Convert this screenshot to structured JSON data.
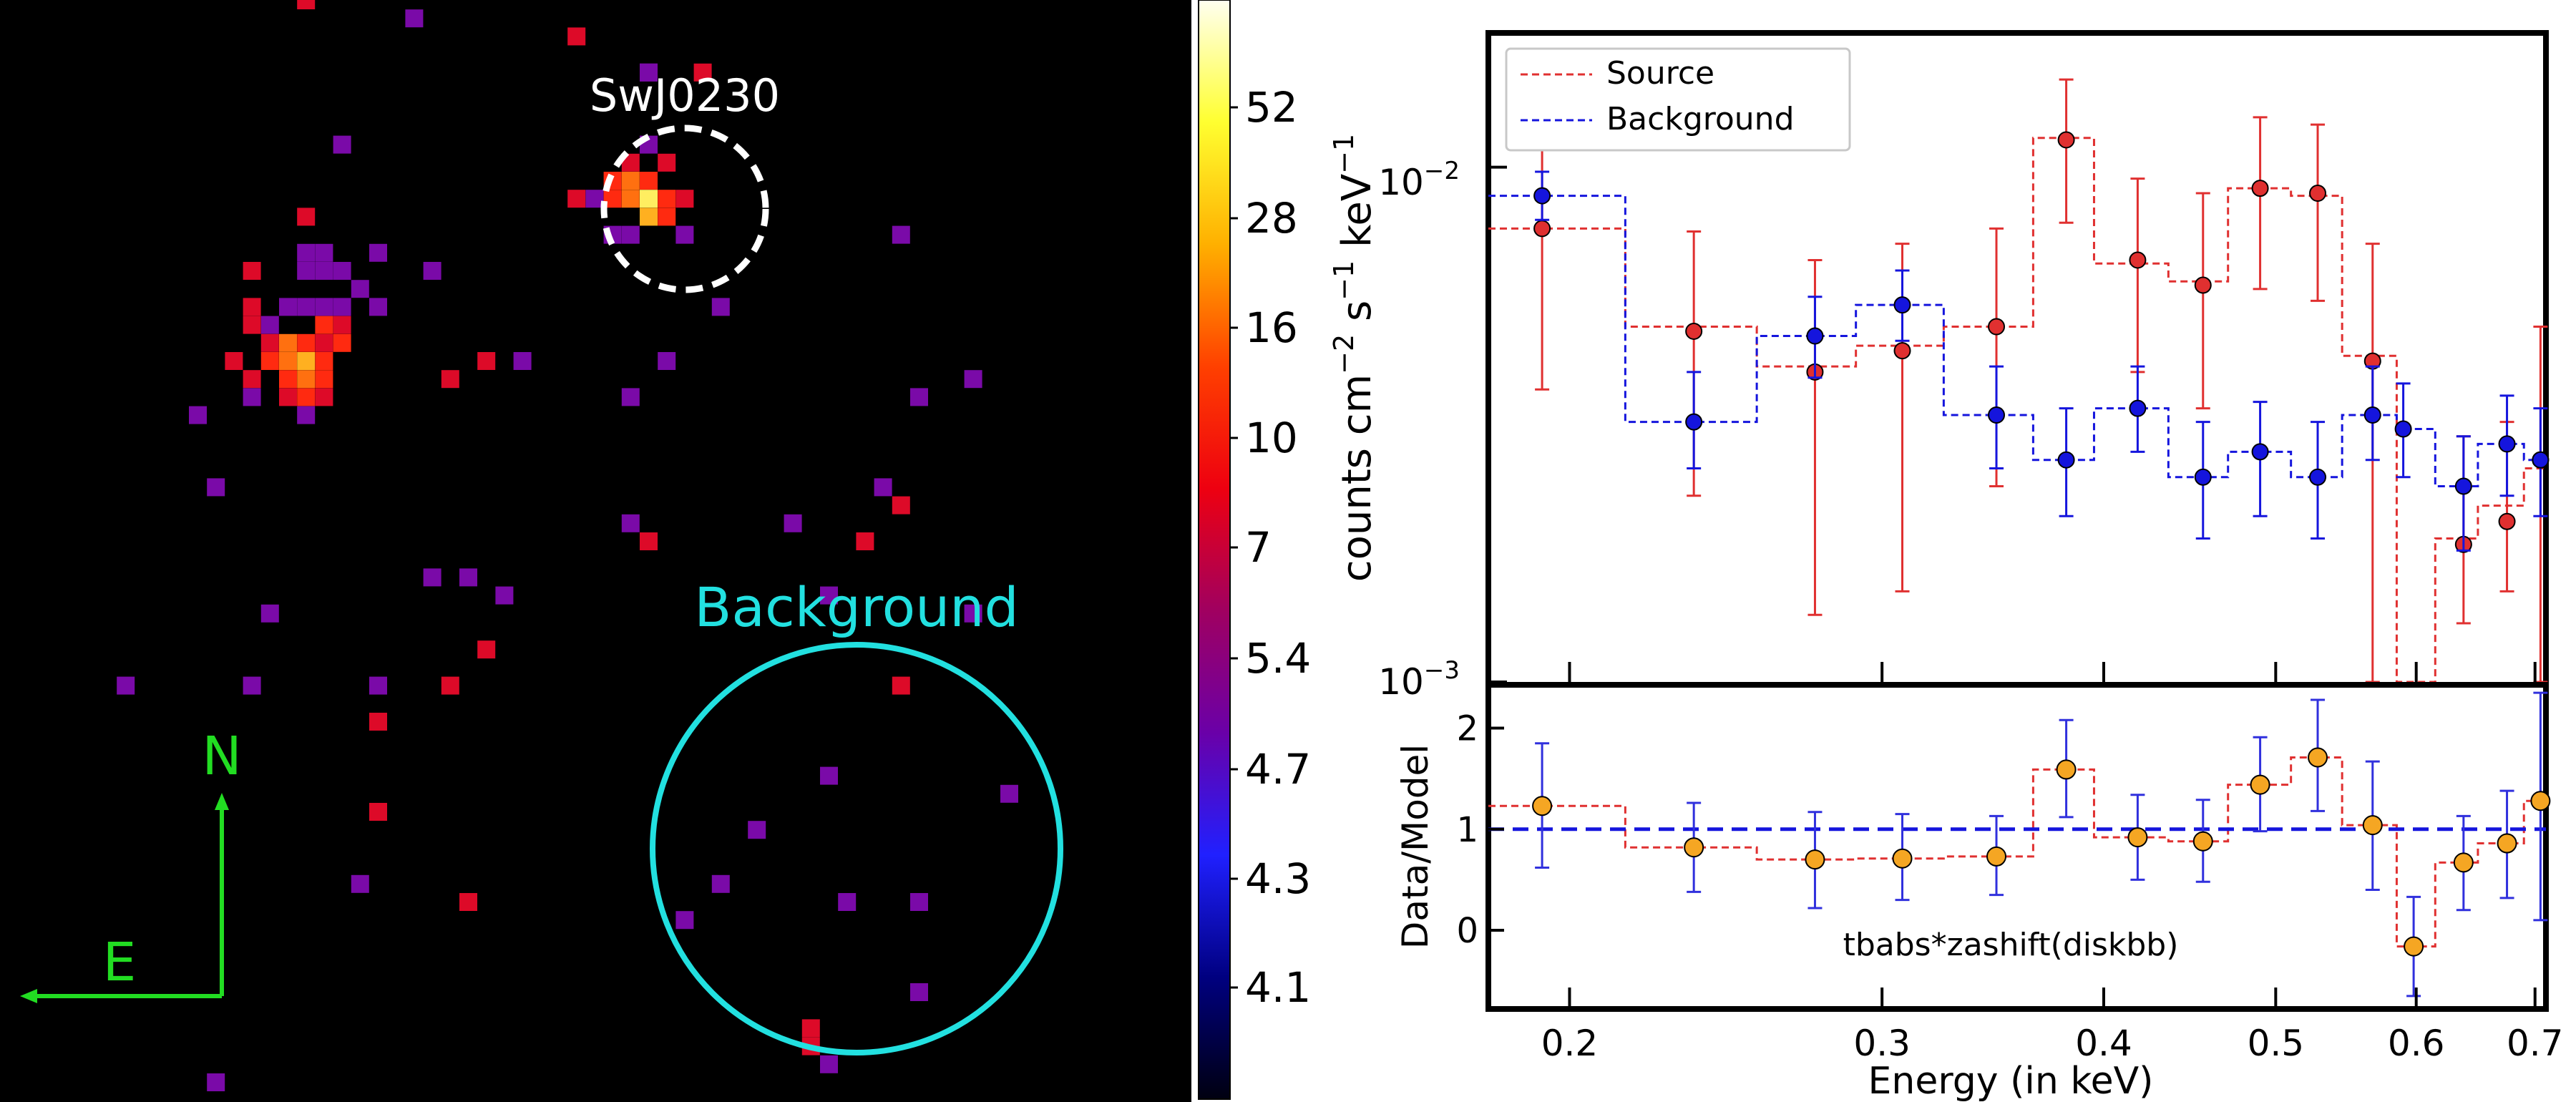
{
  "image": {
    "source_label": "SwJ0230",
    "background_label": "Background",
    "compass": {
      "north": "N",
      "east": "E"
    },
    "colors": {
      "source_circle": "#ffffff",
      "background_circle": "#22e0e0",
      "compass": "#22dd22"
    },
    "pixels": [
      {
        "col": 16,
        "row": 0,
        "v": 7
      },
      {
        "col": 22,
        "row": 1,
        "v": 5.0
      },
      {
        "col": 31,
        "row": 2,
        "v": 7
      },
      {
        "col": 35,
        "row": 4,
        "v": 5.0
      },
      {
        "col": 35,
        "row": 4,
        "v": 5.0
      },
      {
        "col": 38,
        "row": 4,
        "v": 7
      },
      {
        "col": 18,
        "row": 8,
        "v": 5.0
      },
      {
        "col": 35,
        "row": 8,
        "v": 5.0
      },
      {
        "col": 34,
        "row": 9,
        "v": 7
      },
      {
        "col": 36,
        "row": 9,
        "v": 7
      },
      {
        "col": 33,
        "row": 10,
        "v": 10
      },
      {
        "col": 34,
        "row": 10,
        "v": 16
      },
      {
        "col": 35,
        "row": 10,
        "v": 10
      },
      {
        "col": 31,
        "row": 11,
        "v": 7
      },
      {
        "col": 32,
        "row": 11,
        "v": 5.0
      },
      {
        "col": 33,
        "row": 11,
        "v": 10
      },
      {
        "col": 34,
        "row": 11,
        "v": 16
      },
      {
        "col": 35,
        "row": 11,
        "v": 52
      },
      {
        "col": 36,
        "row": 11,
        "v": 10
      },
      {
        "col": 37,
        "row": 11,
        "v": 7
      },
      {
        "col": 35,
        "row": 12,
        "v": 28
      },
      {
        "col": 36,
        "row": 12,
        "v": 10
      },
      {
        "col": 16,
        "row": 12,
        "v": 7
      },
      {
        "col": 33,
        "row": 13,
        "v": 5.0
      },
      {
        "col": 34,
        "row": 13,
        "v": 5.0
      },
      {
        "col": 37,
        "row": 13,
        "v": 5.0
      },
      {
        "col": 49,
        "row": 13,
        "v": 5.0
      },
      {
        "col": 16,
        "row": 14,
        "v": 5.0
      },
      {
        "col": 17,
        "row": 14,
        "v": 5.0
      },
      {
        "col": 20,
        "row": 14,
        "v": 5.0
      },
      {
        "col": 13,
        "row": 15,
        "v": 7
      },
      {
        "col": 16,
        "row": 15,
        "v": 5.0
      },
      {
        "col": 17,
        "row": 15,
        "v": 5.0
      },
      {
        "col": 18,
        "row": 15,
        "v": 5.0
      },
      {
        "col": 23,
        "row": 15,
        "v": 5.0
      },
      {
        "col": 19,
        "row": 16,
        "v": 5.0
      },
      {
        "col": 13,
        "row": 17,
        "v": 7
      },
      {
        "col": 15,
        "row": 17,
        "v": 5.0
      },
      {
        "col": 16,
        "row": 17,
        "v": 5.0
      },
      {
        "col": 17,
        "row": 17,
        "v": 5.0
      },
      {
        "col": 18,
        "row": 17,
        "v": 5.0
      },
      {
        "col": 20,
        "row": 17,
        "v": 5.0
      },
      {
        "col": 39,
        "row": 17,
        "v": 5.0
      },
      {
        "col": 13,
        "row": 18,
        "v": 7
      },
      {
        "col": 14,
        "row": 18,
        "v": 5.0
      },
      {
        "col": 17,
        "row": 18,
        "v": 10
      },
      {
        "col": 18,
        "row": 18,
        "v": 7
      },
      {
        "col": 14,
        "row": 19,
        "v": 7
      },
      {
        "col": 15,
        "row": 19,
        "v": 16
      },
      {
        "col": 16,
        "row": 19,
        "v": 10
      },
      {
        "col": 17,
        "row": 19,
        "v": 7
      },
      {
        "col": 18,
        "row": 19,
        "v": 10
      },
      {
        "col": 12,
        "row": 20,
        "v": 7
      },
      {
        "col": 14,
        "row": 20,
        "v": 10
      },
      {
        "col": 15,
        "row": 20,
        "v": 16
      },
      {
        "col": 16,
        "row": 20,
        "v": 28
      },
      {
        "col": 17,
        "row": 20,
        "v": 10
      },
      {
        "col": 26,
        "row": 20,
        "v": 7
      },
      {
        "col": 28,
        "row": 20,
        "v": 5.0
      },
      {
        "col": 36,
        "row": 20,
        "v": 5.0
      },
      {
        "col": 13,
        "row": 21,
        "v": 7
      },
      {
        "col": 15,
        "row": 21,
        "v": 10
      },
      {
        "col": 16,
        "row": 21,
        "v": 16
      },
      {
        "col": 17,
        "row": 21,
        "v": 10
      },
      {
        "col": 24,
        "row": 21,
        "v": 7
      },
      {
        "col": 53,
        "row": 21,
        "v": 5.0
      },
      {
        "col": 13,
        "row": 22,
        "v": 5.0
      },
      {
        "col": 15,
        "row": 22,
        "v": 7
      },
      {
        "col": 16,
        "row": 22,
        "v": 10
      },
      {
        "col": 17,
        "row": 22,
        "v": 7
      },
      {
        "col": 34,
        "row": 22,
        "v": 5.0
      },
      {
        "col": 50,
        "row": 22,
        "v": 5.0
      },
      {
        "col": 10,
        "row": 23,
        "v": 5.0
      },
      {
        "col": 16,
        "row": 23,
        "v": 5.0
      },
      {
        "col": 11,
        "row": 27,
        "v": 5.0
      },
      {
        "col": 48,
        "row": 27,
        "v": 5.0
      },
      {
        "col": 49,
        "row": 28,
        "v": 7
      },
      {
        "col": 34,
        "row": 29,
        "v": 5.0
      },
      {
        "col": 43,
        "row": 29,
        "v": 5.0
      },
      {
        "col": 35,
        "row": 30,
        "v": 7
      },
      {
        "col": 47,
        "row": 30,
        "v": 7
      },
      {
        "col": 23,
        "row": 32,
        "v": 5.0
      },
      {
        "col": 25,
        "row": 32,
        "v": 5.0
      },
      {
        "col": 27,
        "row": 33,
        "v": 5.0
      },
      {
        "col": 45,
        "row": 33,
        "v": 5.0
      },
      {
        "col": 14,
        "row": 34,
        "v": 5.0
      },
      {
        "col": 53,
        "row": 34,
        "v": 5.0
      },
      {
        "col": 26,
        "row": 36,
        "v": 7
      },
      {
        "col": 6,
        "row": 38,
        "v": 5.0
      },
      {
        "col": 13,
        "row": 38,
        "v": 5.0
      },
      {
        "col": 20,
        "row": 38,
        "v": 5.0
      },
      {
        "col": 24,
        "row": 38,
        "v": 7
      },
      {
        "col": 49,
        "row": 38,
        "v": 7
      },
      {
        "col": 20,
        "row": 40,
        "v": 7
      },
      {
        "col": 45,
        "row": 43,
        "v": 5.0
      },
      {
        "col": 55,
        "row": 44,
        "v": 5.0
      },
      {
        "col": 20,
        "row": 45,
        "v": 7
      },
      {
        "col": 41,
        "row": 46,
        "v": 5.0
      },
      {
        "col": 19,
        "row": 49,
        "v": 5.0
      },
      {
        "col": 39,
        "row": 49,
        "v": 5.0
      },
      {
        "col": 25,
        "row": 50,
        "v": 7
      },
      {
        "col": 46,
        "row": 50,
        "v": 5.0
      },
      {
        "col": 50,
        "row": 50,
        "v": 5.0
      },
      {
        "col": 37,
        "row": 51,
        "v": 5.0
      },
      {
        "col": 50,
        "row": 55,
        "v": 5.0
      },
      {
        "col": 44,
        "row": 57,
        "v": 7
      },
      {
        "col": 44,
        "row": 58,
        "v": 7
      },
      {
        "col": 45,
        "row": 59,
        "v": 5.0
      },
      {
        "col": 11,
        "row": 60,
        "v": 5.0
      }
    ]
  },
  "colorbar": {
    "ticks": [
      "52",
      "28",
      "16",
      "10",
      "7",
      "5.4",
      "4.7",
      "4.3",
      "4.1"
    ],
    "stops": [
      "#fffff0",
      "#ffff30",
      "#ffb000",
      "#ff4000",
      "#ee0010",
      "#a00060",
      "#6a00a8",
      "#2020ff",
      "#000080",
      "#000010"
    ]
  },
  "chart_data": [
    {
      "type": "line",
      "panel": "spectrum",
      "xscale": "log",
      "yscale": "log",
      "xlim": [
        0.18,
        0.71
      ],
      "ylim": [
        0.001,
        0.018
      ],
      "ylabel": "counts cm⁻² s⁻¹ keV⁻¹",
      "ylabel_parts": {
        "main": "counts cm",
        "exp1": "−2",
        "mid": " s",
        "exp2": "−1",
        "end": " keV",
        "exp3": "−1"
      },
      "yticks": [
        {
          "value": 0.01,
          "base": "10",
          "exp": "−2"
        },
        {
          "value": 0.001,
          "base": "10",
          "exp": "−3"
        }
      ],
      "legend": {
        "position": "top-left",
        "entries": [
          "Source",
          "Background"
        ]
      },
      "bin_edges": [
        0.18,
        0.215,
        0.255,
        0.29,
        0.325,
        0.365,
        0.395,
        0.435,
        0.47,
        0.51,
        0.545,
        0.585,
        0.615,
        0.65,
        0.69,
        0.71
      ],
      "series": [
        {
          "name": "Source",
          "color": "#e03030",
          "x": [
            0.193,
            0.235,
            0.275,
            0.308,
            0.348,
            0.381,
            0.418,
            0.455,
            0.49,
            0.528,
            0.567,
            0.638,
            0.675,
            0.705
          ],
          "y": [
            0.0076,
            0.0048,
            0.004,
            0.0044,
            0.0049,
            0.0113,
            0.0066,
            0.0059,
            0.0091,
            0.0089,
            0.0042,
            0.00185,
            0.00205,
            0.0027
          ],
          "err_low": [
            0.0037,
            0.0023,
            0.00135,
            0.0015,
            0.0024,
            0.0078,
            0.004,
            0.0034,
            0.0058,
            0.0055,
            0.001,
            0.0013,
            0.0015,
            0.001
          ],
          "err_high": [
            0.0115,
            0.0075,
            0.0066,
            0.0071,
            0.0076,
            0.0148,
            0.0095,
            0.0089,
            0.0125,
            0.0121,
            0.0071,
            0.003,
            0.0032,
            0.0049
          ],
          "model": [
            0.0076,
            0.0049,
            0.0041,
            0.0045,
            0.0049,
            0.0114,
            0.0065,
            0.006,
            0.0091,
            0.0088,
            0.0043,
            0.001,
            0.0019,
            0.0022,
            0.0026
          ]
        },
        {
          "name": "Background",
          "color": "#1515dd",
          "x": [
            0.193,
            0.235,
            0.275,
            0.308,
            0.348,
            0.381,
            0.418,
            0.455,
            0.49,
            0.528,
            0.567,
            0.59,
            0.638,
            0.675,
            0.705
          ],
          "y": [
            0.0088,
            0.0032,
            0.0047,
            0.0054,
            0.0033,
            0.0027,
            0.0034,
            0.0025,
            0.0028,
            0.0025,
            0.0033,
            0.0031,
            0.0024,
            0.0029,
            0.0027
          ],
          "err_low": [
            0.0079,
            0.0026,
            0.0039,
            0.0046,
            0.0026,
            0.0021,
            0.0028,
            0.0019,
            0.0021,
            0.0019,
            0.0027,
            0.0025,
            0.0018,
            0.0023,
            0.0021
          ],
          "err_high": [
            0.0098,
            0.004,
            0.0056,
            0.0063,
            0.0041,
            0.0034,
            0.0041,
            0.0032,
            0.0035,
            0.0032,
            0.0041,
            0.0038,
            0.003,
            0.0036,
            0.0034
          ],
          "model": [
            0.0088,
            0.0032,
            0.0047,
            0.0054,
            0.0033,
            0.0027,
            0.0034,
            0.0025,
            0.0028,
            0.0025,
            0.0033,
            0.0031,
            0.0024,
            0.0029,
            0.0027
          ]
        }
      ]
    },
    {
      "type": "scatter",
      "panel": "ratio",
      "xscale": "log",
      "xlim": [
        0.18,
        0.71
      ],
      "ylim": [
        -0.75,
        2.4
      ],
      "xlabel": "Energy (in keV)",
      "ylabel": "Data/Model",
      "annotation": "tbabs*zashift(diskbb)",
      "xticks": [
        {
          "value": 0.2,
          "label": "0.2"
        },
        {
          "value": 0.3,
          "label": "0.3"
        },
        {
          "value": 0.4,
          "label": "0.4"
        },
        {
          "value": 0.5,
          "label": "0.5"
        },
        {
          "value": 0.6,
          "label": "0.6"
        },
        {
          "value": 0.7,
          "label": "0.7"
        }
      ],
      "yticks": [
        {
          "value": 0,
          "label": "0"
        },
        {
          "value": 1,
          "label": "1"
        },
        {
          "value": 2,
          "label": "2"
        }
      ],
      "reference_line": 1,
      "point_color": "#f5a623",
      "x": [
        0.193,
        0.235,
        0.275,
        0.308,
        0.348,
        0.381,
        0.418,
        0.455,
        0.49,
        0.528,
        0.567,
        0.598,
        0.638,
        0.675,
        0.705
      ],
      "y": [
        1.23,
        0.82,
        0.7,
        0.71,
        0.73,
        1.59,
        0.92,
        0.88,
        1.44,
        1.71,
        1.04,
        -0.16,
        0.67,
        0.86,
        1.28
      ],
      "err_low": [
        0.62,
        0.38,
        0.22,
        0.3,
        0.35,
        1.12,
        0.5,
        0.48,
        0.98,
        1.18,
        0.4,
        -0.65,
        0.2,
        0.32,
        0.1
      ],
      "err_high": [
        1.85,
        1.26,
        1.17,
        1.15,
        1.13,
        2.08,
        1.34,
        1.29,
        1.91,
        2.28,
        1.67,
        0.33,
        1.13,
        1.38,
        2.35
      ],
      "model_steps": [
        1.23,
        0.82,
        0.7,
        0.71,
        0.73,
        1.59,
        0.92,
        0.88,
        1.44,
        1.71,
        1.04,
        -0.16,
        0.67,
        0.86,
        1.28
      ]
    }
  ]
}
